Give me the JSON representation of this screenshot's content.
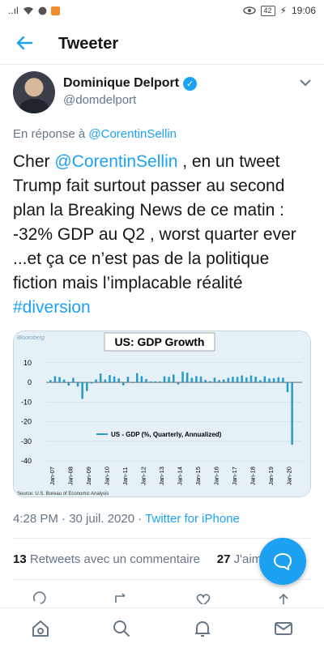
{
  "status_bar": {
    "left_indicators": "..ıl",
    "battery": "42",
    "time": "19:06"
  },
  "header": {
    "title": "Tweeter"
  },
  "tweet": {
    "author_name": "Dominique Delport",
    "author_handle": "@domdelport",
    "reply_prefix": "En réponse à ",
    "reply_mention": "@CorentinSellin",
    "body_before": "Cher ",
    "body_mention": "@CorentinSellin",
    "body_main": " , en un tweet Trump fait surtout passer au second plan la Breaking News de ce matin : -32% GDP au Q2 , worst quarter ever ...et ça ce n’est pas de la politique fiction mais l’implacable réalité ",
    "body_hashtag": "#diversion",
    "timestamp": "4:28 PM · 30 juil. 2020 · ",
    "source": "Twitter for iPhone",
    "retweets_count": "13",
    "retweets_label": " Retweets avec un commentaire",
    "likes_count": "27",
    "likes_label": " J'aime"
  },
  "colors": {
    "accent": "#1da1f2",
    "chart_bar": "#2a9bc7",
    "chart_bg": "#e5f1f7"
  },
  "icons": {
    "back": "arrow-left",
    "verified": "verified-badge",
    "compose": "compose-reply",
    "nav": [
      "home-icon",
      "search-icon",
      "bell-icon",
      "mail-icon"
    ]
  },
  "chart_data": {
    "type": "bar",
    "title": "US: GDP Growth",
    "watermark": "Bloomberg",
    "legend": "US - GDP (%, Quarterly, Annualized)",
    "source": "Source: U.S. Bureau of Economic Analysis",
    "ylim": [
      -40,
      12
    ],
    "yticks": [
      10,
      0,
      -10,
      -20,
      -30,
      -40
    ],
    "xtick_labels": [
      "Jan-07",
      "Jan-08",
      "Jan-09",
      "Jan-10",
      "Jan-11",
      "Jan-12",
      "Jan-13",
      "Jan-14",
      "Jan-15",
      "Jan-16",
      "Jan-17",
      "Jan-18",
      "Jan-19",
      "Jan-20"
    ],
    "series": [
      {
        "values": [
          1.2,
          3.1,
          2.7,
          1.4,
          -1.6,
          2.3,
          -2.1,
          -8.4,
          -4.4,
          -0.6,
          1.5,
          4.5,
          1.5,
          3.7,
          3.0,
          2.0,
          -1.5,
          2.9,
          -0.1,
          4.7,
          3.2,
          1.7,
          0.5,
          0.5,
          0.5,
          3.1,
          2.8,
          4.0,
          -1.1,
          5.5,
          5.0,
          2.3,
          3.2,
          3.0,
          1.3,
          0.6,
          2.4,
          1.2,
          1.5,
          2.3,
          2.8,
          2.8,
          3.5,
          2.5,
          3.5,
          2.9,
          1.1,
          3.1,
          2.0,
          2.1,
          2.6,
          2.4,
          -5.0,
          -31.7
        ]
      }
    ]
  }
}
